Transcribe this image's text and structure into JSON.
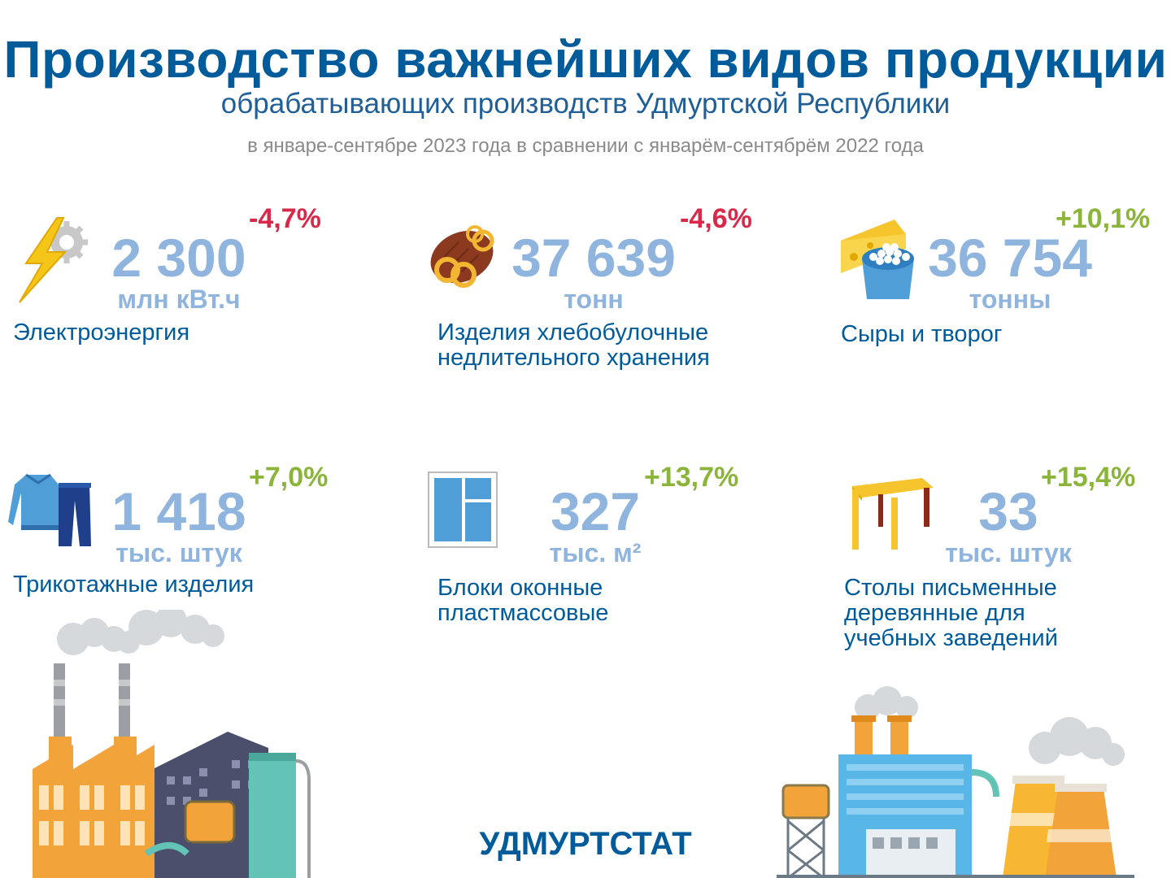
{
  "header": {
    "title": "Производство важнейших видов продукции",
    "subtitle": "обрабатывающих производств Удмуртской Республики",
    "period": "в январе-сентябре 2023 года в сравнении с январём-сентябрём 2022 года"
  },
  "colors": {
    "negative": "#d8294a",
    "positive": "#8bb53a",
    "value": "#8fb4dd",
    "brand": "#005b9a"
  },
  "items": [
    {
      "value": "2 300",
      "unit": "млн кВт.ч",
      "change": "-4,7%",
      "label": [
        "Электроэнергия"
      ],
      "icon": "lightning-gear-icon",
      "trend": "negative"
    },
    {
      "value": "37 639",
      "unit": "тонн",
      "change": "-4,6%",
      "label": [
        "Изделия хлебобулочные",
        "недлительного хранения"
      ],
      "icon": "bread-icon",
      "trend": "negative"
    },
    {
      "value": "36 754",
      "unit": "тонны",
      "change": "+10,1%",
      "label": [
        "Сыры и творог"
      ],
      "icon": "cheese-icon",
      "trend": "positive"
    },
    {
      "value": "1 418",
      "unit": "тыс. штук",
      "change": "+7,0%",
      "label": [
        "Трикотажные изделия"
      ],
      "icon": "knitwear-icon",
      "trend": "positive"
    },
    {
      "value": "327",
      "unit": "тыс. м²",
      "change": "+13,7%",
      "label": [
        "Блоки оконные",
        "пластмассовые"
      ],
      "icon": "window-icon",
      "trend": "positive"
    },
    {
      "value": "33",
      "unit": "тыс. штук",
      "change": "+15,4%",
      "label": [
        "Столы письменные",
        "деревянные для",
        "учебных заведений"
      ],
      "icon": "desk-icon",
      "trend": "positive"
    }
  ],
  "footer": {
    "logo": "УДМУРТСТАТ"
  }
}
